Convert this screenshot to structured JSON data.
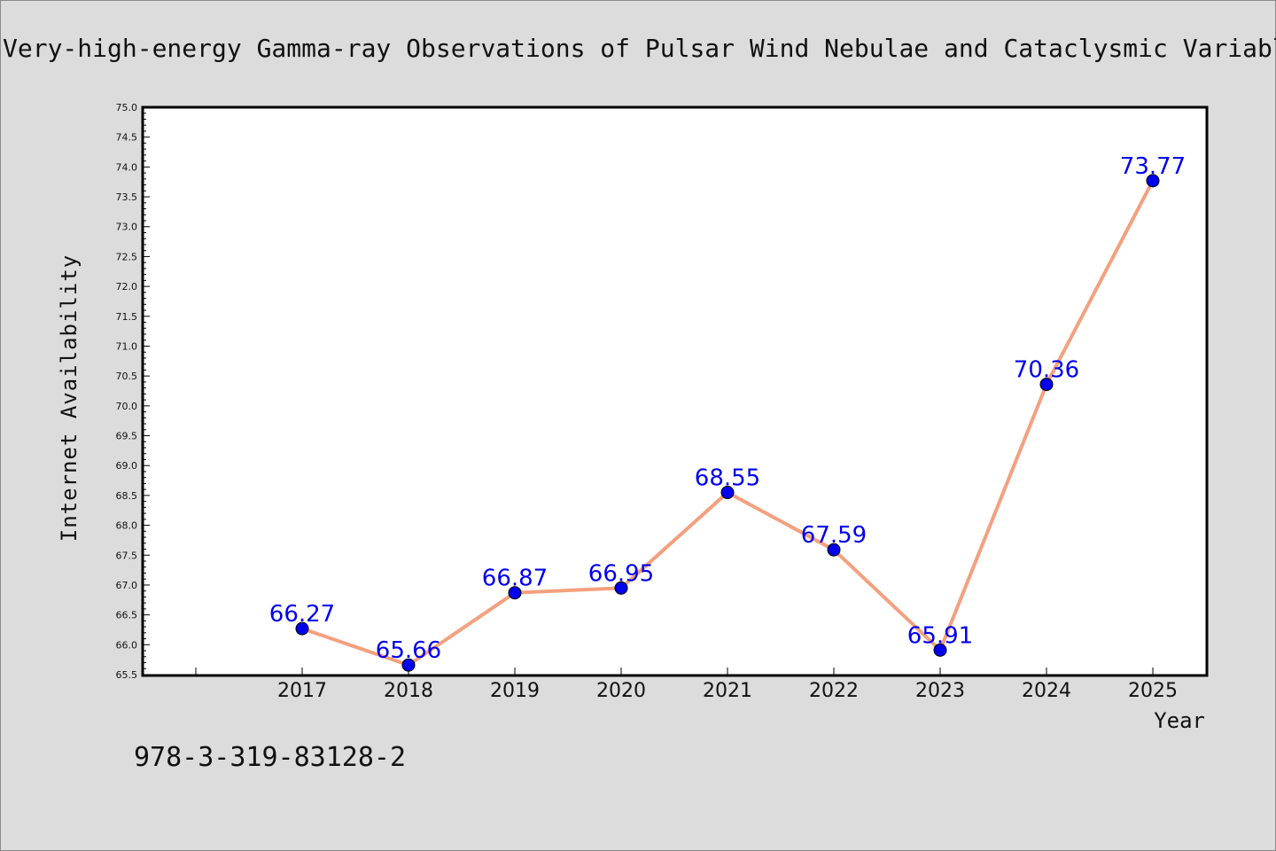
{
  "chart_data": {
    "type": "line",
    "title": "Very-high-energy Gamma-ray Observations of Pulsar Wind Nebulae and Cataclysmic Variable Stars",
    "xlabel": "Year",
    "ylabel": "Internet Availability",
    "categories": [
      "2017",
      "2018",
      "2019",
      "2020",
      "2021",
      "2022",
      "2023",
      "2024",
      "2025"
    ],
    "series": [
      {
        "values": [
          66.27,
          65.66,
          66.87,
          66.95,
          68.55,
          67.59,
          65.91,
          70.36,
          73.77
        ],
        "data_labels": [
          "66.27",
          "65.66",
          "66.87",
          "66.95",
          "68.55",
          "67.59",
          "65.91",
          "70.36",
          "73.77"
        ]
      }
    ],
    "ylim": [
      65.5,
      75.0
    ],
    "y_ticks": [
      "65.5",
      "66.0",
      "66.5",
      "67.0",
      "67.5",
      "68.0",
      "68.5",
      "69.0",
      "69.5",
      "70.0",
      "70.5",
      "71.0",
      "71.5",
      "72.0",
      "72.5",
      "73.0",
      "73.5",
      "74.0",
      "74.5",
      "75.0"
    ],
    "grid": false,
    "legend": "none",
    "colors": {
      "line": "#f4a07e",
      "marker": "#0000ee",
      "data_label": "#0000ee",
      "background": "#dcdcdc",
      "plot_background": "#ffffff"
    }
  },
  "footer": {
    "isbn": "978-3-319-83128-2"
  }
}
